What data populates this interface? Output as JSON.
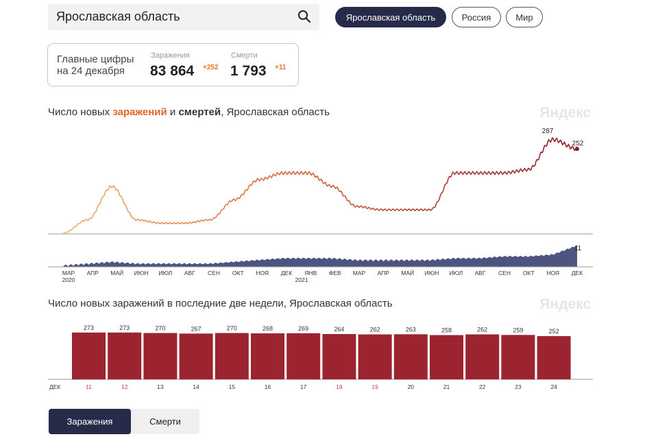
{
  "search": {
    "value": "Ярославская область"
  },
  "regions": [
    {
      "label": "Ярославская область",
      "active": true
    },
    {
      "label": "Россия",
      "active": false
    },
    {
      "label": "Мир",
      "active": false
    }
  ],
  "stats": {
    "title_line1": "Главные цифры",
    "title_line2": "на 24 декабря",
    "infections_label": "Заражения",
    "infections_value": "83 864",
    "infections_delta": "+252",
    "deaths_label": "Смерти",
    "deaths_value": "1 793",
    "deaths_delta": "+11"
  },
  "main_chart": {
    "title_prefix": "Число новых ",
    "title_infections": "заражений",
    "title_and": " и ",
    "title_deaths": "смертей",
    "title_suffix": ", Ярославская область",
    "watermark": "Яндекс",
    "peak_label": "287",
    "last_label": "252",
    "deaths_last_label": "11",
    "months": [
      "МАР",
      "АПР",
      "МАЙ",
      "ИЮН",
      "ИЮЛ",
      "АВГ",
      "СЕН",
      "ОКТ",
      "НОЯ",
      "ДЕК",
      "ЯНВ",
      "ФЕВ",
      "МАР",
      "АПР",
      "МАЙ",
      "ИЮН",
      "ИЮЛ",
      "АВГ",
      "СЕН",
      "ОКТ",
      "НОЯ",
      "ДЕК"
    ],
    "year_2020": "2020",
    "year_2021": "2021",
    "colors": {
      "start": "#f0b46a",
      "mid": "#d9663a",
      "end": "#8a1c2c",
      "deaths": "#4c5580"
    }
  },
  "chart_data": [
    {
      "type": "line",
      "title": "Число новых заражений и смертей, Ярославская область",
      "x": [
        "МАР 2020",
        "АПР",
        "МАЙ",
        "ИЮН",
        "ИЮЛ",
        "АВГ",
        "СЕН",
        "ОКТ",
        "НОЯ",
        "ДЕК",
        "ЯНВ 2021",
        "ФЕВ",
        "МАР",
        "АПР",
        "МАЙ",
        "ИЮН",
        "ИЮЛ",
        "АВГ",
        "СЕН",
        "ОКТ",
        "НОЯ",
        "ДЕК"
      ],
      "series": [
        {
          "values": [
            0,
            40,
            140,
            40,
            30,
            30,
            40,
            100,
            160,
            180,
            180,
            140,
            80,
            70,
            70,
            70,
            180,
            180,
            180,
            190,
            280,
            252
          ]
        },
        {
          "values": [
            0,
            1,
            2,
            1,
            1,
            1,
            1,
            2,
            3,
            4,
            4,
            4,
            3,
            3,
            3,
            3,
            4,
            4,
            5,
            5,
            6,
            11
          ]
        }
      ],
      "annotations": [
        "287",
        "252",
        "11"
      ]
    },
    {
      "type": "bar",
      "title": "Число новых заражений в последние две недели, Ярославская область",
      "xlabel": "ДЕК",
      "categories": [
        "11",
        "12",
        "13",
        "14",
        "15",
        "16",
        "17",
        "18",
        "19",
        "20",
        "21",
        "22",
        "23",
        "24"
      ],
      "values": [
        273,
        273,
        270,
        267,
        270,
        268,
        269,
        264,
        262,
        263,
        258,
        262,
        259,
        252
      ],
      "red_days": [
        "11",
        "12",
        "18",
        "19"
      ],
      "bar_color": "#9b2430"
    }
  ],
  "bar_chart": {
    "title": "Число новых заражений в последние две недели, Ярославская область",
    "watermark": "Яндекс",
    "month_label": "ДЕК"
  },
  "tabs": [
    {
      "label": "Заражения",
      "active": true
    },
    {
      "label": "Смерти",
      "active": false
    }
  ]
}
